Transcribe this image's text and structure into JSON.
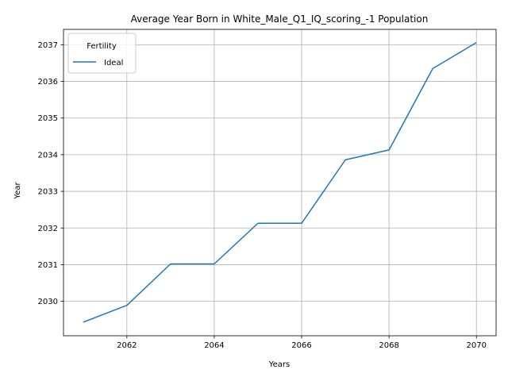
{
  "chart_data": {
    "type": "line",
    "title": "Average Year Born in White_Male_Q1_IQ_scoring_-1 Population",
    "xlabel": "Years",
    "ylabel": "Year",
    "x": [
      2061,
      2062,
      2063,
      2064,
      2065,
      2066,
      2067,
      2068,
      2069,
      2070
    ],
    "series": [
      {
        "name": "Ideal",
        "color": "#1f77b4",
        "values": [
          2029.43,
          2029.89,
          2031.02,
          2031.02,
          2032.13,
          2032.13,
          2033.86,
          2034.13,
          2036.35,
          2037.06
        ]
      }
    ],
    "xlim": [
      2060.55,
      2070.45
    ],
    "ylim": [
      2029.06,
      2037.42
    ],
    "x_ticks": [
      2062,
      2064,
      2066,
      2068,
      2070
    ],
    "y_ticks": [
      2030,
      2031,
      2032,
      2033,
      2034,
      2035,
      2036,
      2037
    ],
    "grid": true,
    "legend": {
      "title": "Fertility",
      "placement": "top-left"
    }
  }
}
